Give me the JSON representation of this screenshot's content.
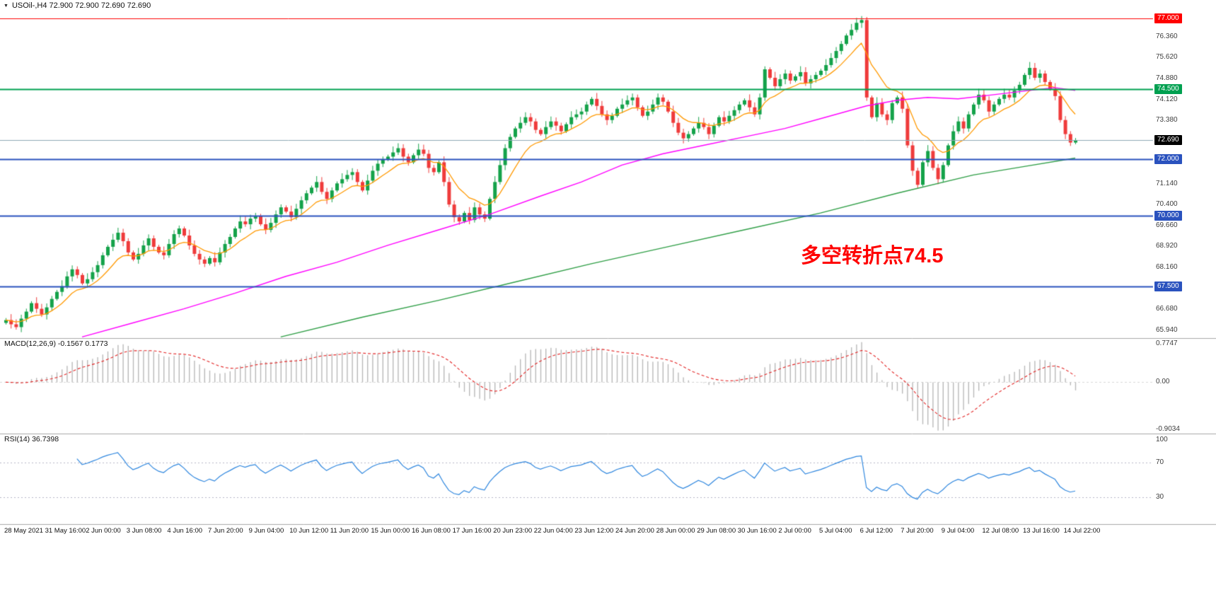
{
  "window": {
    "title_marker": "▼"
  },
  "chart_data": [
    {
      "type": "candlestick",
      "symbol": "USOil-",
      "timeframe": "H4",
      "title": "USOil-,H4 72.900 72.900 72.690 72.690",
      "ohlc_display": [
        72.9,
        72.9,
        72.69,
        72.69
      ],
      "y_range": [
        65.66,
        77.66
      ],
      "y_tick_labels": [
        "76.360",
        "75.620",
        "74.880",
        "74.120",
        "73.380",
        "71.140",
        "70.400",
        "69.660",
        "68.920",
        "68.160",
        "66.680",
        "65.940"
      ],
      "x_labels": [
        "28 May 2021",
        "31 May 16:00",
        "2 Jun 00:00",
        "3 Jun 08:00",
        "4 Jun 16:00",
        "7 Jun 20:00",
        "9 Jun 04:00",
        "10 Jun 12:00",
        "11 Jun 20:00",
        "15 Jun 00:00",
        "16 Jun 08:00",
        "17 Jun 16:00",
        "20 Jun 23:00",
        "22 Jun 04:00",
        "23 Jun 12:00",
        "24 Jun 20:00",
        "28 Jun 00:00",
        "29 Jun 08:00",
        "30 Jun 16:00",
        "2 Jul 00:00",
        "5 Jul 04:00",
        "6 Jul 12:00",
        "7 Jul 20:00",
        "9 Jul 04:00",
        "12 Jul 08:00",
        "13 Jul 16:00",
        "14 Jul 22:00"
      ],
      "open_first": 66.2,
      "closes": [
        66.3,
        66.15,
        66.05,
        66.35,
        66.6,
        66.9,
        66.7,
        66.5,
        66.75,
        67.05,
        67.3,
        67.5,
        67.85,
        68.1,
        67.9,
        67.6,
        67.75,
        68,
        68.25,
        68.6,
        68.9,
        69.15,
        69.4,
        69.1,
        68.7,
        68.45,
        68.65,
        68.95,
        69.2,
        68.9,
        68.7,
        68.6,
        69,
        69.35,
        69.55,
        69.3,
        68.95,
        68.65,
        68.45,
        68.3,
        68.5,
        68.35,
        68.7,
        69,
        69.25,
        69.55,
        69.8,
        69.7,
        69.9,
        70,
        69.7,
        69.5,
        69.75,
        70.05,
        70.3,
        70.15,
        69.95,
        70.25,
        70.55,
        70.8,
        71,
        71.2,
        70.85,
        70.6,
        70.9,
        71.15,
        71.3,
        71.45,
        71.55,
        71.2,
        70.9,
        71.25,
        71.6,
        71.85,
        72,
        72.1,
        72.25,
        72.4,
        72.1,
        71.9,
        72.15,
        72.35,
        72.2,
        71.7,
        71.55,
        71.9,
        71.2,
        70.4,
        69.95,
        69.8,
        70.1,
        69.85,
        70.3,
        70.05,
        69.9,
        70.6,
        71.2,
        71.8,
        72.4,
        72.8,
        73.1,
        73.3,
        73.5,
        73.35,
        73.05,
        72.9,
        73.15,
        73.35,
        73.2,
        73,
        73.25,
        73.5,
        73.6,
        73.7,
        73.95,
        74.15,
        73.9,
        73.6,
        73.4,
        73.55,
        73.8,
        73.95,
        74.1,
        74.2,
        73.85,
        73.55,
        73.7,
        73.95,
        74.2,
        74.05,
        73.7,
        73.3,
        72.95,
        72.75,
        72.9,
        73.1,
        73.3,
        73.15,
        72.9,
        73.2,
        73.5,
        73.35,
        73.55,
        73.75,
        73.95,
        74.1,
        73.85,
        73.6,
        74.2,
        75.2,
        74.9,
        74.6,
        74.85,
        75.05,
        74.8,
        74.95,
        75.1,
        74.7,
        74.85,
        75,
        75.15,
        75.35,
        75.6,
        75.85,
        76.1,
        76.4,
        76.6,
        76.85,
        76.95,
        74.2,
        73.5,
        74,
        73.6,
        73.4,
        74,
        74.2,
        73.8,
        72.5,
        71.6,
        71.1,
        71.9,
        72.3,
        71.7,
        71.3,
        71.8,
        72.5,
        73,
        73.35,
        73.1,
        73.6,
        73.95,
        74.3,
        74.1,
        73.7,
        73.95,
        74.15,
        74.3,
        74.2,
        74.45,
        74.65,
        75,
        75.25,
        74.9,
        75.05,
        74.75,
        74.5,
        74.25,
        73.4,
        72.9,
        72.6,
        72.69
      ],
      "candle_colors": {
        "up": "#14a24a",
        "down": "#ef3b3b"
      },
      "horizontal_lines": [
        {
          "price": 77.0,
          "label": "77.000",
          "color": "#ff0000",
          "width": 1
        },
        {
          "price": 74.5,
          "label": "74.500",
          "color": "#00a050",
          "width": 2
        },
        {
          "price": 72.0,
          "label": "72.000",
          "color": "#2a52be",
          "width": 2
        },
        {
          "price": 70.0,
          "label": "70.000",
          "color": "#2a52be",
          "width": 2
        },
        {
          "price": 67.5,
          "label": "67.500",
          "color": "#2a52be",
          "width": 2
        }
      ],
      "current_price": {
        "value": 72.69,
        "label": "72.690",
        "badge_color": "#000000",
        "line_color": "#8fa8b4"
      },
      "annotation": {
        "text": "多空转折点74.5",
        "color": "#ff0000"
      },
      "moving_averages": [
        {
          "name": "fast",
          "color": "#ff9900",
          "period": 10
        },
        {
          "name": "mid",
          "color": "#ff00ff",
          "points": [
            [
              15,
              65.7
            ],
            [
              25,
              66.2
            ],
            [
              35,
              66.7
            ],
            [
              45,
              67.25
            ],
            [
              55,
              67.85
            ],
            [
              65,
              68.35
            ],
            [
              75,
              68.95
            ],
            [
              85,
              69.5
            ],
            [
              95,
              70.05
            ],
            [
              105,
              70.7
            ],
            [
              113,
              71.2
            ],
            [
              121,
              71.8
            ],
            [
              129,
              72.2
            ],
            [
              137,
              72.5
            ],
            [
              145,
              72.8
            ],
            [
              153,
              73.1
            ],
            [
              161,
              73.5
            ],
            [
              169,
              73.9
            ],
            [
              175,
              74.1
            ],
            [
              181,
              74.2
            ],
            [
              187,
              74.15
            ],
            [
              194,
              74.3
            ],
            [
              201,
              74.45
            ],
            [
              206,
              74.55
            ],
            [
              210,
              74.45
            ]
          ]
        },
        {
          "name": "slow",
          "color": "#2f9e46",
          "points": [
            [
              54,
              65.7
            ],
            [
              70,
              66.4
            ],
            [
              85,
              67
            ],
            [
              100,
              67.65
            ],
            [
              115,
              68.3
            ],
            [
              130,
              68.9
            ],
            [
              145,
              69.5
            ],
            [
              160,
              70.1
            ],
            [
              175,
              70.8
            ],
            [
              190,
              71.45
            ],
            [
              200,
              71.75
            ],
            [
              210,
              72.05
            ]
          ]
        }
      ]
    },
    {
      "type": "macd",
      "label": "MACD(12,26,9) -0.1567 0.1773",
      "params": {
        "fast": 12,
        "slow": 26,
        "signal": 9
      },
      "current": {
        "macd": -0.1567,
        "signal": 0.1773
      },
      "y_range": [
        -0.9034,
        0.7747
      ],
      "y_tick_labels": [
        "0.7747",
        "0.00",
        "-0.9034"
      ],
      "histogram_color": "#b9b9b9",
      "signal_color": "#e22222"
    },
    {
      "type": "rsi",
      "label": "RSI(14) 36.7398",
      "period": 14,
      "current": 36.7398,
      "y_range": [
        0,
        100
      ],
      "levels": [
        70,
        30
      ],
      "y_tick_labels": [
        "100",
        "70",
        "30"
      ],
      "line_color": "#2e86de",
      "level_color": "#b6b6c6"
    }
  ]
}
